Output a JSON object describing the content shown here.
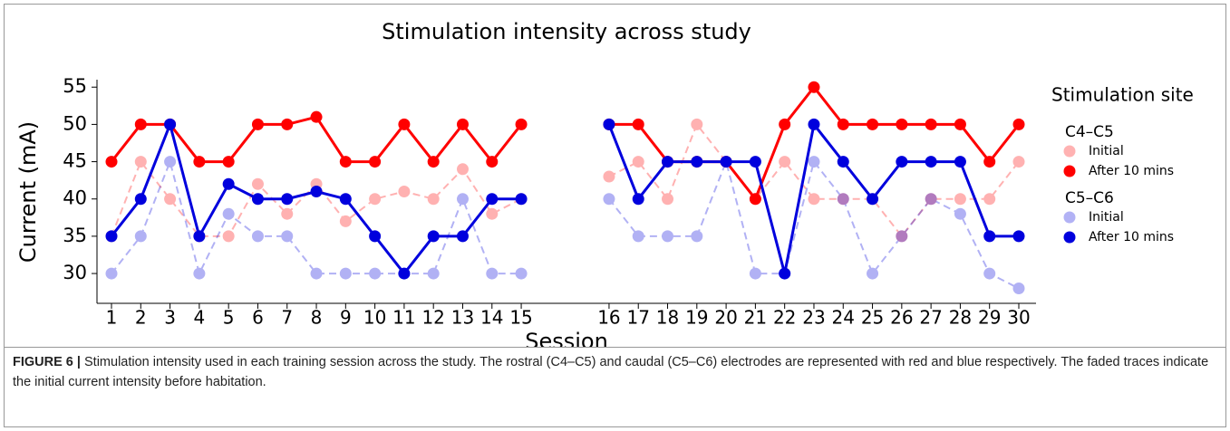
{
  "chart_data": {
    "type": "line",
    "title": "Stimulation intensity across study",
    "x_label": "Session",
    "y_label": "Current (mA)",
    "categories": [
      "1",
      "2",
      "3",
      "4",
      "5",
      "6",
      "7",
      "8",
      "9",
      "10",
      "11",
      "12",
      "13",
      "14",
      "15",
      null,
      null,
      "16",
      "17",
      "18",
      "19",
      "20",
      "21",
      "22",
      "23",
      "24",
      "25",
      "26",
      "27",
      "28",
      "29",
      "30"
    ],
    "ylim": [
      26,
      56
    ],
    "yticks": [
      30,
      35,
      40,
      45,
      50,
      55
    ],
    "legend_title": "Stimulation site",
    "legend_position": "right",
    "series": [
      {
        "name": "Initial",
        "group": "C4–C5",
        "color": "#ff0000",
        "opacity": 0.3,
        "dashed": true,
        "values": [
          35,
          45,
          40,
          35,
          35,
          42,
          38,
          42,
          37,
          40,
          41,
          40,
          44,
          38,
          40,
          null,
          null,
          43,
          45,
          40,
          50,
          45,
          40,
          45,
          40,
          40,
          40,
          35,
          40,
          40,
          40,
          45
        ]
      },
      {
        "name": "After 10 mins",
        "group": "C4–C5",
        "color": "#ff0000",
        "opacity": 1,
        "dashed": false,
        "values": [
          45,
          50,
          50,
          45,
          45,
          50,
          50,
          51,
          45,
          45,
          50,
          45,
          50,
          45,
          50,
          null,
          null,
          50,
          50,
          45,
          45,
          45,
          40,
          50,
          55,
          50,
          50,
          50,
          50,
          50,
          45,
          50
        ]
      },
      {
        "name": "Initial",
        "group": "C5–C6",
        "color": "#0000dd",
        "opacity": 0.3,
        "dashed": true,
        "values": [
          30,
          35,
          45,
          30,
          38,
          35,
          35,
          30,
          30,
          30,
          30,
          30,
          40,
          30,
          30,
          null,
          null,
          40,
          35,
          35,
          35,
          45,
          30,
          30,
          45,
          40,
          30,
          35,
          40,
          38,
          30,
          28
        ]
      },
      {
        "name": "After 10 mins",
        "group": "C5–C6",
        "color": "#0000dd",
        "opacity": 1,
        "dashed": false,
        "values": [
          35,
          40,
          50,
          35,
          42,
          40,
          40,
          41,
          40,
          35,
          30,
          35,
          35,
          40,
          40,
          null,
          null,
          50,
          40,
          45,
          45,
          45,
          45,
          30,
          50,
          45,
          40,
          45,
          45,
          45,
          35,
          35
        ]
      }
    ]
  },
  "caption": {
    "label": "FIGURE 6 |",
    "text": "Stimulation intensity used in each training session across the study. The rostral (C4–C5) and caudal (C5–C6) electrodes are represented with red and blue respectively. The faded traces indicate the initial current intensity before habitation."
  }
}
